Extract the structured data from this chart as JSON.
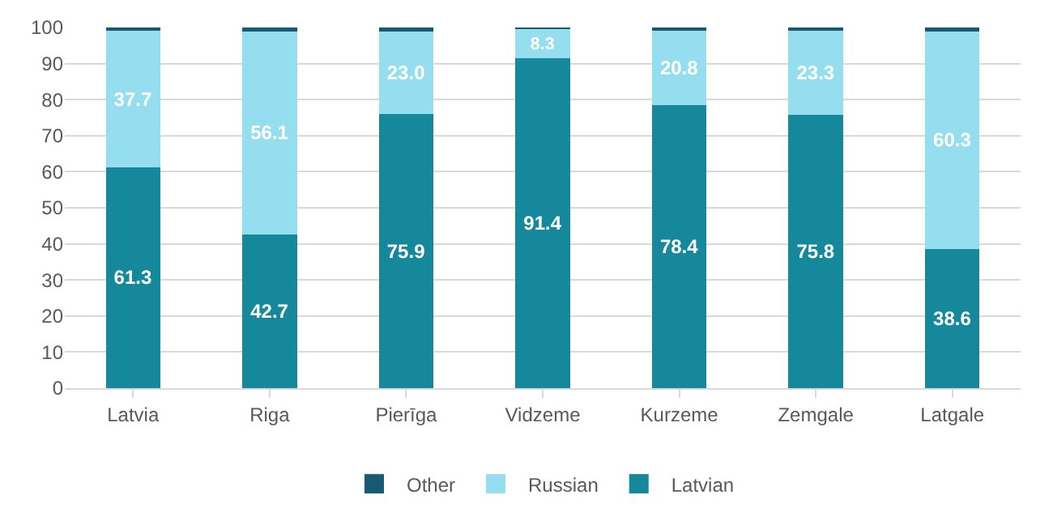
{
  "chart_data": {
    "type": "bar",
    "stacked": true,
    "categories": [
      "Latvia",
      "Riga",
      "Pierīga",
      "Vidzeme",
      "Kurzeme",
      "Zemgale",
      "Latgale"
    ],
    "series": [
      {
        "name": "Latvian",
        "color": "#15899b",
        "values": [
          61.3,
          42.7,
          75.9,
          91.4,
          78.4,
          75.8,
          38.6
        ],
        "value_labels": [
          "61.3",
          "42.7",
          "75.9",
          "91.4",
          "78.4",
          "75.8",
          "38.6"
        ]
      },
      {
        "name": "Russian",
        "color": "#94def0",
        "values": [
          37.7,
          56.1,
          23.0,
          8.3,
          20.8,
          23.3,
          60.3
        ],
        "value_labels": [
          "37.7",
          "56.1",
          "23.0",
          "8.3",
          "20.8",
          "23.3",
          "60.3"
        ]
      },
      {
        "name": "Other",
        "color": "#175a72",
        "values": [
          1.0,
          1.2,
          1.1,
          0.3,
          0.8,
          0.9,
          1.1
        ]
      }
    ],
    "ylim": [
      0,
      100
    ],
    "yticks": [
      0,
      10,
      20,
      30,
      40,
      50,
      60,
      70,
      80,
      90,
      100
    ],
    "grid": "y",
    "legend": "bottom"
  }
}
